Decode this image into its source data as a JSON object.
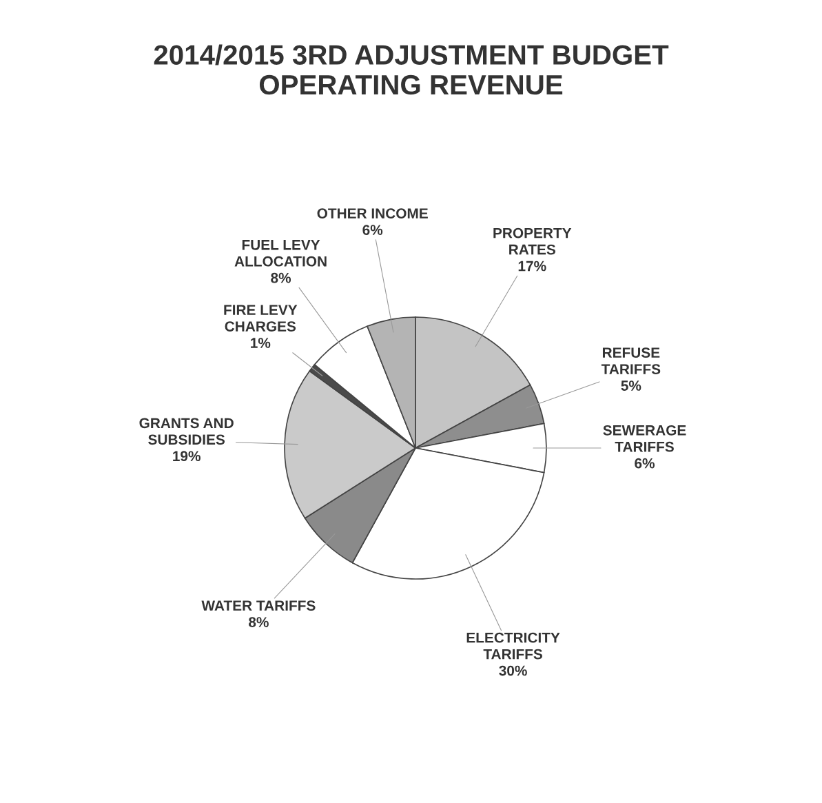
{
  "chart_data": {
    "type": "pie",
    "title": "2014/2015 3RD ADJUSTMENT BUDGET\nOPERATING REVENUE",
    "categories": [
      "PROPERTY\nRATES",
      "REFUSE\nTARIFFS",
      "SEWERAGE\nTARIFFS",
      "ELECTRICITY\nTARIFFS",
      "WATER TARIFFS",
      "GRANTS AND\nSUBSIDIES",
      "FIRE LEVY\nCHARGES",
      "FUEL LEVY\nALLOCATION",
      "OTHER INCOME"
    ],
    "values": [
      17,
      5,
      6,
      30,
      8,
      19,
      1,
      8,
      6
    ],
    "value_labels": [
      "17%",
      "5%",
      "6%",
      "30%",
      "8%",
      "19%",
      "1%",
      "8%",
      "6%"
    ],
    "colors": [
      "#c4c4c4",
      "#8e8e8e",
      "#ffffff",
      "#ffffff",
      "#8a8a8a",
      "#cacaca",
      "#4a4a4a",
      "#ffffff",
      "#b4b4b4"
    ]
  }
}
